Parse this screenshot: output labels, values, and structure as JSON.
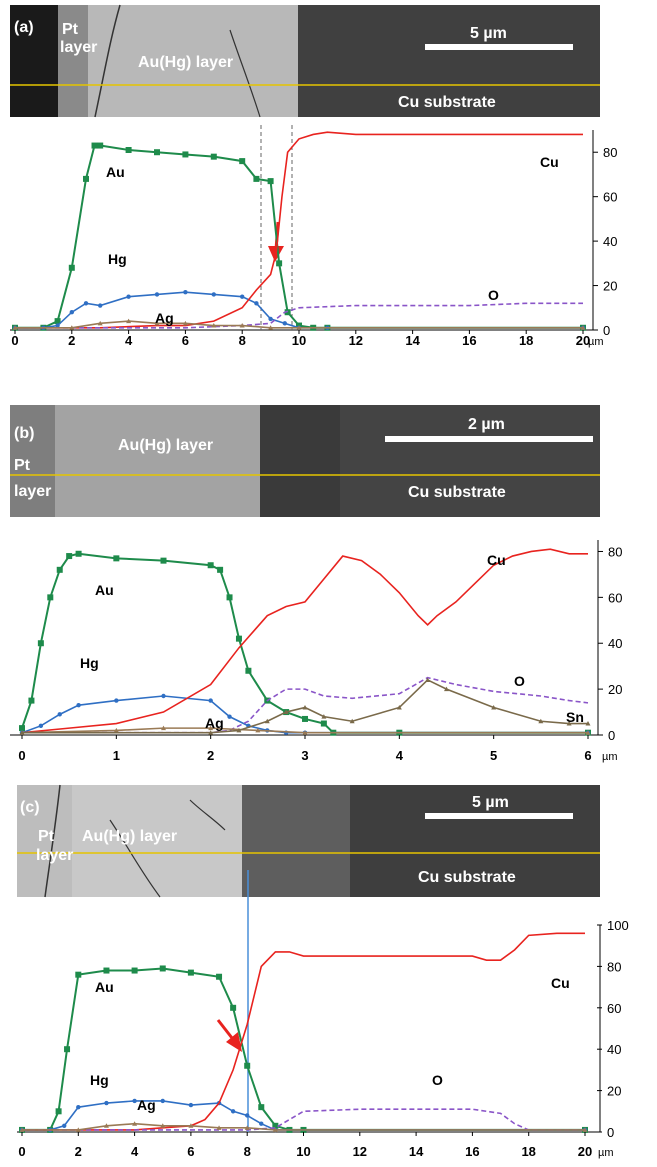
{
  "panels": [
    {
      "tag": "(a)",
      "scale_bar": "5 µm",
      "image_labels": {
        "pt_line1": "Pt",
        "pt_line2": "layer",
        "auhg": "Au(Hg) layer",
        "cu": "Cu substrate"
      },
      "x_unit": "µm",
      "colors": {
        "Au": "#1e8b4b",
        "Hg": "#2f6fc4",
        "Cu": "#e8231f",
        "O": "#8a55c8",
        "Ag": "#9a7a55"
      }
    },
    {
      "tag": "(b)",
      "scale_bar": "2 µm",
      "image_labels": {
        "pt_line1": "Pt",
        "pt_line2": "layer",
        "auhg": "Au(Hg) layer",
        "cu": "Cu substrate"
      },
      "x_unit": "µm",
      "colors": {
        "Au": "#1e8b4b",
        "Hg": "#2f6fc4",
        "Cu": "#e8231f",
        "O": "#8a55c8",
        "Ag": "#9a7a55",
        "Sn": "#7a6a4a"
      }
    },
    {
      "tag": "(c)",
      "scale_bar": "5 µm",
      "image_labels": {
        "pt_line1": "Pt",
        "pt_line2": "layer",
        "auhg": "Au(Hg) layer",
        "cu": "Cu substrate"
      },
      "x_unit": "µm",
      "colors": {
        "Au": "#1e8b4b",
        "Hg": "#2f6fc4",
        "Cu": "#e8231f",
        "O": "#8a55c8",
        "Ag": "#9a7a55"
      }
    }
  ],
  "chart_data": [
    {
      "type": "line",
      "xlim": [
        0,
        20
      ],
      "ylim": [
        0,
        90
      ],
      "x_ticks": [
        "0",
        "2",
        "4",
        "6",
        "8",
        "10",
        "12",
        "14",
        "16",
        "18",
        "20"
      ],
      "x_unit": "µm",
      "y_ticks": [
        "0",
        "20",
        "40",
        "60",
        "80"
      ],
      "annotations": [
        "dashed line at x≈8.4",
        "dashed line at x≈9.5",
        "red arrow at x≈9"
      ],
      "series": [
        {
          "name": "Au",
          "x": [
            0,
            1,
            1.5,
            2,
            2.5,
            2.8,
            3,
            4,
            5,
            6,
            7,
            8,
            8.5,
            9,
            9.3,
            9.6,
            10,
            10.5,
            11,
            20
          ],
          "y": [
            1,
            1,
            4,
            28,
            68,
            83,
            83,
            81,
            80,
            79,
            78,
            76,
            68,
            67,
            30,
            8,
            2,
            1,
            1,
            1
          ]
        },
        {
          "name": "Hg",
          "x": [
            0,
            1,
            1.5,
            2,
            2.5,
            3,
            4,
            5,
            6,
            7,
            8,
            8.5,
            9,
            9.5,
            10,
            11,
            20
          ],
          "y": [
            1,
            1,
            2,
            8,
            12,
            11,
            15,
            16,
            17,
            16,
            15,
            12,
            5,
            3,
            1,
            1,
            1
          ]
        },
        {
          "name": "Cu",
          "x": [
            0,
            3,
            5,
            6,
            7,
            8,
            8.5,
            9,
            9.2,
            9.4,
            9.6,
            10,
            10.5,
            11,
            12,
            14,
            16,
            18,
            20
          ],
          "y": [
            1,
            1,
            2,
            2,
            4,
            10,
            18,
            25,
            35,
            60,
            80,
            86,
            88,
            89,
            88,
            88,
            88,
            88,
            88
          ]
        },
        {
          "name": "O",
          "x": [
            0,
            6,
            8,
            9,
            9.5,
            10,
            12,
            14,
            16,
            18,
            20
          ],
          "y": [
            1,
            1,
            2,
            3,
            8,
            10,
            11,
            11,
            11,
            12,
            12
          ]
        },
        {
          "name": "Ag",
          "x": [
            0,
            2,
            3,
            4,
            5,
            6,
            7,
            8,
            9,
            10,
            20
          ],
          "y": [
            1,
            1,
            3,
            4,
            3,
            3,
            2,
            2,
            1,
            1,
            1
          ]
        }
      ]
    },
    {
      "type": "line",
      "xlim": [
        0,
        6
      ],
      "ylim": [
        0,
        85
      ],
      "x_ticks": [
        "0",
        "1",
        "2",
        "3",
        "4",
        "5",
        "6"
      ],
      "x_unit": "µm",
      "y_ticks": [
        "0",
        "20",
        "40",
        "60",
        "80"
      ],
      "series": [
        {
          "name": "Au",
          "x": [
            0,
            0.1,
            0.2,
            0.3,
            0.4,
            0.5,
            0.6,
            1,
            1.5,
            2,
            2.1,
            2.2,
            2.3,
            2.4,
            2.6,
            2.8,
            3,
            3.2,
            3.3,
            4,
            6
          ],
          "y": [
            3,
            15,
            40,
            60,
            72,
            78,
            79,
            77,
            76,
            74,
            72,
            60,
            42,
            28,
            15,
            10,
            7,
            5,
            1,
            1,
            1
          ]
        },
        {
          "name": "Hg",
          "x": [
            0,
            0.2,
            0.4,
            0.6,
            1,
            1.5,
            2,
            2.2,
            2.4,
            2.6,
            2.8,
            3,
            6
          ],
          "y": [
            1,
            4,
            9,
            13,
            15,
            17,
            15,
            8,
            4,
            2,
            1,
            1,
            1
          ]
        },
        {
          "name": "Cu",
          "x": [
            0,
            0.5,
            1,
            1.5,
            2,
            2.3,
            2.6,
            2.8,
            3,
            3.2,
            3.4,
            3.6,
            3.8,
            4,
            4.2,
            4.3,
            4.4,
            4.6,
            4.8,
            5,
            5.2,
            5.4,
            5.6,
            5.8,
            6
          ],
          "y": [
            1,
            3,
            5,
            10,
            22,
            38,
            52,
            56,
            58,
            68,
            78,
            76,
            70,
            62,
            52,
            48,
            52,
            58,
            66,
            74,
            78,
            80,
            81,
            79,
            79
          ]
        },
        {
          "name": "O",
          "x": [
            0,
            2,
            2.2,
            2.4,
            2.6,
            2.8,
            3,
            3.2,
            3.5,
            4,
            4.3,
            4.6,
            5,
            5.5,
            5.8,
            6
          ],
          "y": [
            1,
            1,
            2,
            6,
            15,
            20,
            20,
            17,
            16,
            18,
            25,
            22,
            19,
            17,
            15,
            14
          ]
        },
        {
          "name": "Ag",
          "x": [
            0,
            1,
            1.5,
            2,
            2.5,
            3,
            6
          ],
          "y": [
            1,
            2,
            3,
            3,
            2,
            1,
            1
          ]
        },
        {
          "name": "Sn",
          "x": [
            0,
            2,
            2.3,
            2.6,
            2.8,
            3,
            3.2,
            3.5,
            4,
            4.3,
            4.5,
            5,
            5.5,
            5.8,
            6
          ],
          "y": [
            1,
            1,
            2,
            6,
            10,
            12,
            8,
            6,
            12,
            24,
            20,
            12,
            6,
            5,
            5
          ]
        }
      ]
    },
    {
      "type": "line",
      "xlim": [
        0,
        20
      ],
      "ylim": [
        0,
        100
      ],
      "x_ticks": [
        "0",
        "2",
        "4",
        "6",
        "8",
        "10",
        "12",
        "14",
        "16",
        "18",
        "20"
      ],
      "x_unit": "µm",
      "y_ticks": [
        "0",
        "20",
        "40",
        "60",
        "80",
        "100"
      ],
      "annotations": [
        "vertical line at x≈7.7",
        "red arrow at x≈7.3"
      ],
      "series": [
        {
          "name": "Au",
          "x": [
            0,
            1,
            1.3,
            1.6,
            2,
            3,
            4,
            5,
            6,
            7,
            7.5,
            8,
            8.5,
            9,
            9.5,
            10,
            20
          ],
          "y": [
            1,
            1,
            10,
            40,
            76,
            78,
            78,
            79,
            77,
            75,
            60,
            32,
            12,
            3,
            1,
            1,
            1
          ]
        },
        {
          "name": "Hg",
          "x": [
            0,
            1,
            1.5,
            2,
            3,
            4,
            5,
            6,
            7,
            7.5,
            8,
            8.5,
            9,
            20
          ],
          "y": [
            1,
            1,
            3,
            12,
            14,
            15,
            15,
            13,
            14,
            10,
            8,
            4,
            1,
            1
          ]
        },
        {
          "name": "Cu",
          "x": [
            0,
            4,
            5,
            6,
            6.5,
            7,
            7.5,
            8,
            8.5,
            9,
            9.5,
            10,
            12,
            14,
            16,
            16.5,
            17,
            17.5,
            18,
            19,
            20
          ],
          "y": [
            1,
            1,
            2,
            3,
            6,
            14,
            30,
            52,
            80,
            87,
            87,
            85,
            85,
            85,
            85,
            83,
            83,
            88,
            95,
            96,
            96
          ]
        },
        {
          "name": "O",
          "x": [
            0,
            8,
            9,
            9.5,
            10,
            12,
            14,
            16,
            17,
            17.5,
            18,
            20
          ],
          "y": [
            1,
            1,
            2,
            6,
            10,
            11,
            11,
            11,
            9,
            4,
            1,
            1
          ]
        },
        {
          "name": "Ag",
          "x": [
            0,
            2,
            3,
            4,
            5,
            6,
            7,
            8,
            9,
            20
          ],
          "y": [
            1,
            1,
            3,
            4,
            3,
            3,
            2,
            2,
            1,
            1
          ]
        }
      ]
    }
  ]
}
